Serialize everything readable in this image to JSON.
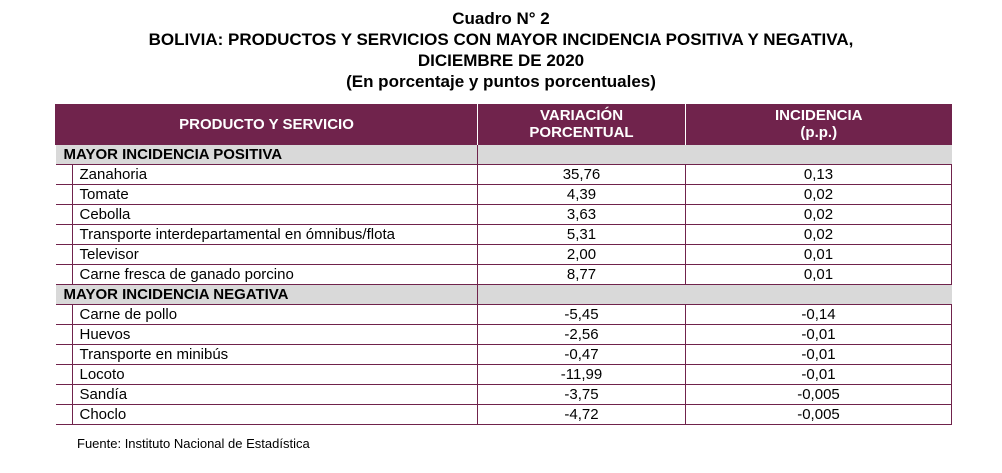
{
  "title": {
    "line1": "Cuadro N° 2",
    "line2": "BOLIVIA: PRODUCTOS Y SERVICIOS CON MAYOR INCIDENCIA POSITIVA Y NEGATIVA,",
    "line3": "DICIEMBRE DE 2020",
    "line4": "(En porcentaje y puntos porcentuales)"
  },
  "headers": {
    "col1": "PRODUCTO Y SERVICIO",
    "col2_line1": "VARIACIÓN",
    "col2_line2": "PORCENTUAL",
    "col3_line1": "INCIDENCIA",
    "col3_line2": "(p.p.)"
  },
  "sections": [
    {
      "label": "MAYOR INCIDENCIA POSITIVA",
      "rows": [
        {
          "name": "Zanahoria",
          "variation": "35,76",
          "incidence": "0,13"
        },
        {
          "name": "Tomate",
          "variation": "4,39",
          "incidence": "0,02"
        },
        {
          "name": "Cebolla",
          "variation": "3,63",
          "incidence": "0,02"
        },
        {
          "name": "Transporte interdepartamental en ómnibus/flota",
          "variation": "5,31",
          "incidence": "0,02"
        },
        {
          "name": "Televisor",
          "variation": "2,00",
          "incidence": "0,01"
        },
        {
          "name": "Carne fresca de ganado porcino",
          "variation": "8,77",
          "incidence": "0,01"
        }
      ]
    },
    {
      "label": "MAYOR INCIDENCIA NEGATIVA",
      "rows": [
        {
          "name": "Carne de pollo",
          "variation": "-5,45",
          "incidence": "-0,14"
        },
        {
          "name": "Huevos",
          "variation": "-2,56",
          "incidence": "-0,01"
        },
        {
          "name": "Transporte en minibús",
          "variation": "-0,47",
          "incidence": "-0,01"
        },
        {
          "name": "Locoto",
          "variation": "-11,99",
          "incidence": "-0,01"
        },
        {
          "name": "Sandía",
          "variation": "-3,75",
          "incidence": "-0,005"
        },
        {
          "name": "Choclo",
          "variation": "-4,72",
          "incidence": "-0,005"
        }
      ]
    }
  ],
  "source": "Fuente: Instituto Nacional de Estadística",
  "colors": {
    "header_bg": "#70234c",
    "section_bg": "#d9d9d9"
  }
}
